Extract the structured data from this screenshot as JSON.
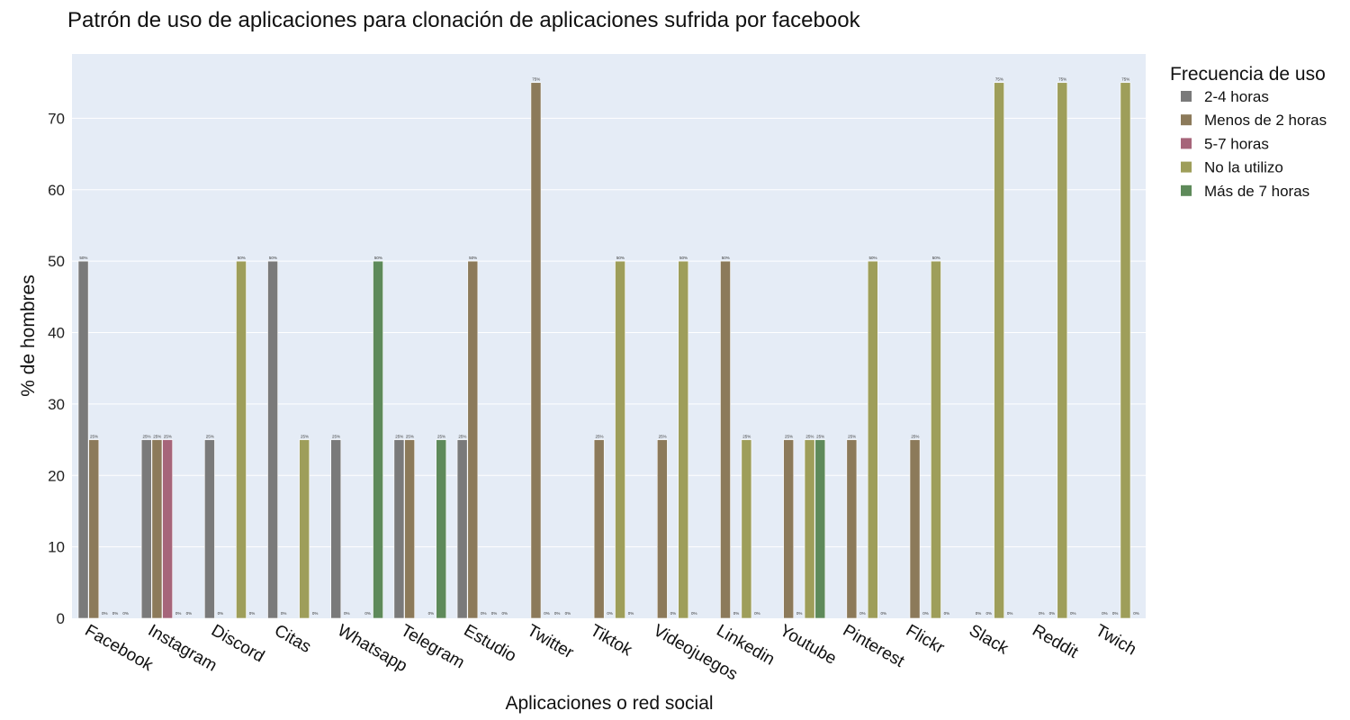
{
  "chart_data": {
    "type": "bar",
    "title": "Patrón de uso de aplicaciones para clonación de aplicaciones sufrida por facebook",
    "xlabel": "Aplicaciones o red social",
    "ylabel": "% de hombres",
    "ylim": [
      0,
      79
    ],
    "yticks": [
      0,
      10,
      20,
      30,
      40,
      50,
      60,
      70
    ],
    "grid": true,
    "legend": {
      "title": "Frecuencia de uso",
      "position": "right"
    },
    "categories": [
      "Facebook",
      "Instagram",
      "Discord",
      "Citas",
      "Whatsapp",
      "Telegram",
      "Estudio",
      "Twitter",
      "Tiktok",
      "Videojuegos",
      "Linkedin",
      "Youtube",
      "Pinterest",
      "Flickr",
      "Slack",
      "Reddit",
      "Twich"
    ],
    "series": [
      {
        "name": "2-4 horas",
        "color": "#7a7a7a",
        "values": [
          50,
          25,
          25,
          50,
          25,
          25,
          25,
          null,
          null,
          null,
          null,
          null,
          null,
          null,
          null,
          null,
          null
        ]
      },
      {
        "name": "Menos de 2 horas",
        "color": "#8c7a5a",
        "values": [
          25,
          25,
          0,
          0,
          0,
          25,
          50,
          75,
          25,
          25,
          50,
          25,
          25,
          25,
          0,
          0,
          0
        ]
      },
      {
        "name": "5-7 horas",
        "color": "#a6657a",
        "values": [
          0,
          25,
          null,
          null,
          null,
          null,
          0,
          0,
          0,
          0,
          0,
          0,
          0,
          0,
          0,
          0,
          0
        ]
      },
      {
        "name": "No la utilizo",
        "color": "#9e9e5a",
        "values": [
          0,
          0,
          50,
          25,
          0,
          0,
          0,
          0,
          50,
          50,
          25,
          25,
          50,
          50,
          75,
          75,
          75
        ]
      },
      {
        "name": "Más de 7 horas",
        "color": "#5e8a5a",
        "values": [
          0,
          0,
          0,
          0,
          50,
          25,
          0,
          0,
          0,
          0,
          0,
          25,
          0,
          0,
          0,
          0,
          0
        ]
      }
    ]
  }
}
